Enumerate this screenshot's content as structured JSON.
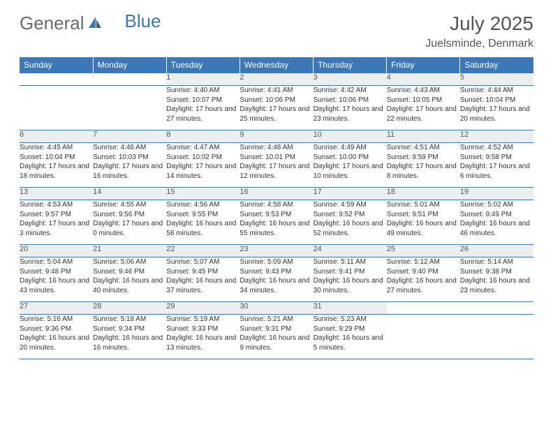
{
  "logo": {
    "part1": "General",
    "part2": "Blue"
  },
  "title": "July 2025",
  "location": "Juelsminde, Denmark",
  "colors": {
    "header_bg": "#3a78b8",
    "header_text": "#ffffff",
    "daynum_bg": "#eceeef",
    "border": "#3a78b8",
    "logo_gray": "#6a6a6a",
    "logo_blue": "#3a78b8"
  },
  "weekdays": [
    "Sunday",
    "Monday",
    "Tuesday",
    "Wednesday",
    "Thursday",
    "Friday",
    "Saturday"
  ],
  "weeks": [
    [
      null,
      null,
      {
        "d": "1",
        "sr": "Sunrise: 4:40 AM",
        "ss": "Sunset: 10:07 PM",
        "dl": "Daylight: 17 hours and 27 minutes."
      },
      {
        "d": "2",
        "sr": "Sunrise: 4:41 AM",
        "ss": "Sunset: 10:06 PM",
        "dl": "Daylight: 17 hours and 25 minutes."
      },
      {
        "d": "3",
        "sr": "Sunrise: 4:42 AM",
        "ss": "Sunset: 10:06 PM",
        "dl": "Daylight: 17 hours and 23 minutes."
      },
      {
        "d": "4",
        "sr": "Sunrise: 4:43 AM",
        "ss": "Sunset: 10:05 PM",
        "dl": "Daylight: 17 hours and 22 minutes."
      },
      {
        "d": "5",
        "sr": "Sunrise: 4:44 AM",
        "ss": "Sunset: 10:04 PM",
        "dl": "Daylight: 17 hours and 20 minutes."
      }
    ],
    [
      {
        "d": "6",
        "sr": "Sunrise: 4:45 AM",
        "ss": "Sunset: 10:04 PM",
        "dl": "Daylight: 17 hours and 18 minutes."
      },
      {
        "d": "7",
        "sr": "Sunrise: 4:46 AM",
        "ss": "Sunset: 10:03 PM",
        "dl": "Daylight: 17 hours and 16 minutes."
      },
      {
        "d": "8",
        "sr": "Sunrise: 4:47 AM",
        "ss": "Sunset: 10:02 PM",
        "dl": "Daylight: 17 hours and 14 minutes."
      },
      {
        "d": "9",
        "sr": "Sunrise: 4:48 AM",
        "ss": "Sunset: 10:01 PM",
        "dl": "Daylight: 17 hours and 12 minutes."
      },
      {
        "d": "10",
        "sr": "Sunrise: 4:49 AM",
        "ss": "Sunset: 10:00 PM",
        "dl": "Daylight: 17 hours and 10 minutes."
      },
      {
        "d": "11",
        "sr": "Sunrise: 4:51 AM",
        "ss": "Sunset: 9:59 PM",
        "dl": "Daylight: 17 hours and 8 minutes."
      },
      {
        "d": "12",
        "sr": "Sunrise: 4:52 AM",
        "ss": "Sunset: 9:58 PM",
        "dl": "Daylight: 17 hours and 6 minutes."
      }
    ],
    [
      {
        "d": "13",
        "sr": "Sunrise: 4:53 AM",
        "ss": "Sunset: 9:57 PM",
        "dl": "Daylight: 17 hours and 3 minutes."
      },
      {
        "d": "14",
        "sr": "Sunrise: 4:55 AM",
        "ss": "Sunset: 9:56 PM",
        "dl": "Daylight: 17 hours and 0 minutes."
      },
      {
        "d": "15",
        "sr": "Sunrise: 4:56 AM",
        "ss": "Sunset: 9:55 PM",
        "dl": "Daylight: 16 hours and 58 minutes."
      },
      {
        "d": "16",
        "sr": "Sunrise: 4:58 AM",
        "ss": "Sunset: 9:53 PM",
        "dl": "Daylight: 16 hours and 55 minutes."
      },
      {
        "d": "17",
        "sr": "Sunrise: 4:59 AM",
        "ss": "Sunset: 9:52 PM",
        "dl": "Daylight: 16 hours and 52 minutes."
      },
      {
        "d": "18",
        "sr": "Sunrise: 5:01 AM",
        "ss": "Sunset: 9:51 PM",
        "dl": "Daylight: 16 hours and 49 minutes."
      },
      {
        "d": "19",
        "sr": "Sunrise: 5:02 AM",
        "ss": "Sunset: 9:49 PM",
        "dl": "Daylight: 16 hours and 46 minutes."
      }
    ],
    [
      {
        "d": "20",
        "sr": "Sunrise: 5:04 AM",
        "ss": "Sunset: 9:48 PM",
        "dl": "Daylight: 16 hours and 43 minutes."
      },
      {
        "d": "21",
        "sr": "Sunrise: 5:06 AM",
        "ss": "Sunset: 9:46 PM",
        "dl": "Daylight: 16 hours and 40 minutes."
      },
      {
        "d": "22",
        "sr": "Sunrise: 5:07 AM",
        "ss": "Sunset: 9:45 PM",
        "dl": "Daylight: 16 hours and 37 minutes."
      },
      {
        "d": "23",
        "sr": "Sunrise: 5:09 AM",
        "ss": "Sunset: 9:43 PM",
        "dl": "Daylight: 16 hours and 34 minutes."
      },
      {
        "d": "24",
        "sr": "Sunrise: 5:11 AM",
        "ss": "Sunset: 9:41 PM",
        "dl": "Daylight: 16 hours and 30 minutes."
      },
      {
        "d": "25",
        "sr": "Sunrise: 5:12 AM",
        "ss": "Sunset: 9:40 PM",
        "dl": "Daylight: 16 hours and 27 minutes."
      },
      {
        "d": "26",
        "sr": "Sunrise: 5:14 AM",
        "ss": "Sunset: 9:38 PM",
        "dl": "Daylight: 16 hours and 23 minutes."
      }
    ],
    [
      {
        "d": "27",
        "sr": "Sunrise: 5:16 AM",
        "ss": "Sunset: 9:36 PM",
        "dl": "Daylight: 16 hours and 20 minutes."
      },
      {
        "d": "28",
        "sr": "Sunrise: 5:18 AM",
        "ss": "Sunset: 9:34 PM",
        "dl": "Daylight: 16 hours and 16 minutes."
      },
      {
        "d": "29",
        "sr": "Sunrise: 5:19 AM",
        "ss": "Sunset: 9:33 PM",
        "dl": "Daylight: 16 hours and 13 minutes."
      },
      {
        "d": "30",
        "sr": "Sunrise: 5:21 AM",
        "ss": "Sunset: 9:31 PM",
        "dl": "Daylight: 16 hours and 9 minutes."
      },
      {
        "d": "31",
        "sr": "Sunrise: 5:23 AM",
        "ss": "Sunset: 9:29 PM",
        "dl": "Daylight: 16 hours and 5 minutes."
      },
      null,
      null
    ]
  ]
}
